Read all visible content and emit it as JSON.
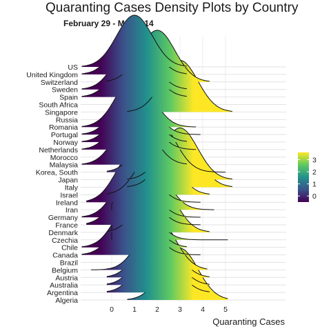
{
  "chart_data": {
    "type": "ridgeline",
    "title": "Quaranting Cases Density Plots by Country",
    "subtitle": "February 29 - March 14",
    "xlabel": "Quaranting Cases",
    "ylabel": "",
    "xlim": [
      -1.7,
      7.6
    ],
    "x_ticks": [
      0,
      1,
      2,
      3,
      4,
      5
    ],
    "grid": true,
    "legend": {
      "position": "right",
      "title": "",
      "ticks": [
        0,
        1,
        2,
        3
      ],
      "range": [
        -0.5,
        3.6
      ],
      "colors": [
        "#440154",
        "#3b528b",
        "#21918c",
        "#5ec962",
        "#fde725"
      ]
    },
    "categories": [
      "US",
      "United Kingdom",
      "Switzerland",
      "Sweden",
      "Spain",
      "South Africa",
      "Singapore",
      "Russia",
      "Romania",
      "Portugal",
      "Norway",
      "Netherlands",
      "Morocco",
      "Malaysia",
      "Korea, South",
      "Japan",
      "Italy",
      "Israel",
      "Ireland",
      "Iran",
      "Germany",
      "France",
      "Denmark",
      "Czechia",
      "Chile",
      "Canada",
      "Brazil",
      "Belgium",
      "Austria",
      "Australia",
      "Argentina",
      "Algeria"
    ],
    "series": [
      {
        "name": "US",
        "xmin": -1.3,
        "xmax": 3.3,
        "peak": 1.0
      },
      {
        "name": "United Kingdom",
        "xmin": -1.3,
        "xmax": 3.3,
        "peak": 1.0
      },
      {
        "name": "Switzerland",
        "xmin": -0.2,
        "xmax": 4.3,
        "peak": 2.0
      },
      {
        "name": "Sweden",
        "xmin": -1.3,
        "xmax": 3.3,
        "peak": 1.0
      },
      {
        "name": "Spain",
        "xmin": -1.3,
        "xmax": 3.3,
        "peak": 1.0
      },
      {
        "name": "South Africa",
        "xmin": null,
        "xmax": null,
        "peak": null
      },
      {
        "name": "Singapore",
        "xmin": 0.7,
        "xmax": 5.3,
        "peak": 3.0
      },
      {
        "name": "Russia",
        "xmin": null,
        "xmax": null,
        "peak": null
      },
      {
        "name": "Romania",
        "xmin": -1.3,
        "xmax": 3.7,
        "peak": 1.0
      },
      {
        "name": "Portugal",
        "xmin": -1.3,
        "xmax": 3.9,
        "peak": 1.0
      },
      {
        "name": "Norway",
        "xmin": -1.3,
        "xmax": 3.3,
        "peak": 1.0
      },
      {
        "name": "Netherlands",
        "xmin": -1.3,
        "xmax": 3.7,
        "peak": 1.0
      },
      {
        "name": "Morocco",
        "xmin": null,
        "xmax": null,
        "peak": null
      },
      {
        "name": "Malaysia",
        "xmin": -1.3,
        "xmax": 3.3,
        "peak": 1.0
      },
      {
        "name": "Korea, South",
        "xmin": -0.2,
        "xmax": 5.0,
        "peak": 2.0
      },
      {
        "name": "Japan",
        "xmin": 0.7,
        "xmax": 5.3,
        "peak": 3.0
      },
      {
        "name": "Italy",
        "xmin": 0.7,
        "xmax": 5.3,
        "peak": 3.0
      },
      {
        "name": "Israel",
        "xmin": -0.2,
        "xmax": 4.3,
        "peak": 2.0
      },
      {
        "name": "Ireland",
        "xmin": -1.1,
        "xmax": 3.9,
        "peak": 1.0
      },
      {
        "name": "Iran",
        "xmin": 0.0,
        "xmax": 4.5,
        "peak": 1.6
      },
      {
        "name": "Germany",
        "xmin": -1.3,
        "xmax": 3.9,
        "peak": 1.0
      },
      {
        "name": "France",
        "xmin": -1.1,
        "xmax": 3.9,
        "peak": 1.0
      },
      {
        "name": "Denmark",
        "xmin": -0.2,
        "xmax": 4.3,
        "peak": 2.0
      },
      {
        "name": "Czechia",
        "xmin": 0.0,
        "xmax": 5.1,
        "peak": 1.0
      },
      {
        "name": "Chile",
        "xmin": -1.3,
        "xmax": 3.3,
        "peak": 1.0
      },
      {
        "name": "Canada",
        "xmin": -1.3,
        "xmax": 3.9,
        "peak": 1.0
      },
      {
        "name": "Brazil",
        "xmin": null,
        "xmax": null,
        "peak": null
      },
      {
        "name": "Belgium",
        "xmin": -0.9,
        "xmax": 4.2,
        "peak": 2.0
      },
      {
        "name": "Austria",
        "xmin": -0.2,
        "xmax": 4.3,
        "peak": 2.0
      },
      {
        "name": "Australia",
        "xmin": -0.2,
        "xmax": 4.3,
        "peak": 2.0
      },
      {
        "name": "Argentina",
        "xmin": -0.2,
        "xmax": 4.3,
        "peak": 2.0
      },
      {
        "name": "Algeria",
        "xmin": 0.7,
        "xmax": 5.1,
        "peak": 3.0
      }
    ]
  }
}
